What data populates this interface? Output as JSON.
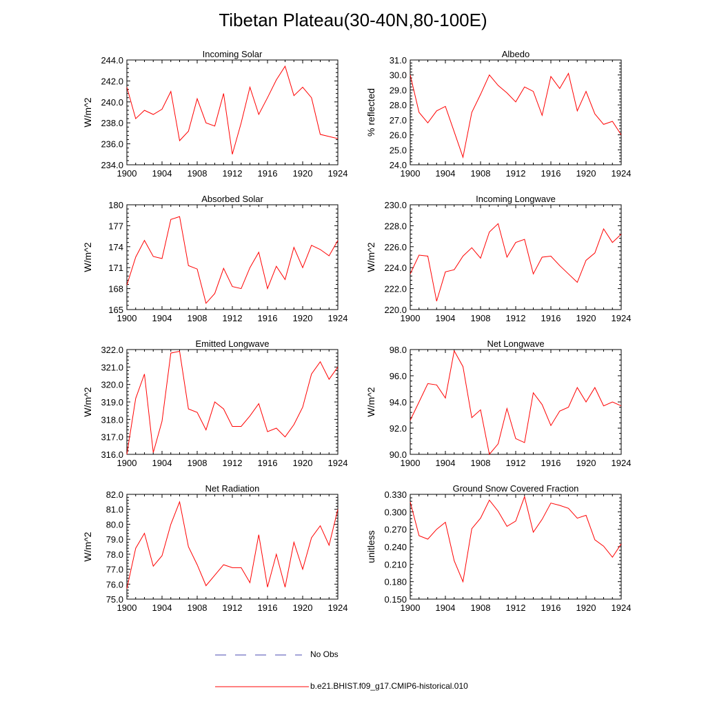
{
  "title": "Tibetan Plateau(30-40N,80-100E)",
  "colors": {
    "series": "#ff0000",
    "obs": "#4a4ab0",
    "axis": "#000000"
  },
  "legend": [
    {
      "label": "No Obs",
      "style": "dashed",
      "color": "#4a4ab0"
    },
    {
      "label": "b.e21.BHIST.f09_g17.CMIP6-historical.010",
      "style": "solid",
      "color": "#ff0000"
    }
  ],
  "chart_data": [
    {
      "type": "line",
      "title": "Incoming Solar",
      "ylabel": "W/m^2",
      "xlim": [
        1900,
        1924
      ],
      "xticks": [
        "1900",
        "1904",
        "1908",
        "1912",
        "1916",
        "1920",
        "1924"
      ],
      "ylim": [
        234.0,
        244.0
      ],
      "yticks": [
        "234.0",
        "236.0",
        "238.0",
        "240.0",
        "242.0",
        "244.0"
      ],
      "x": [
        1900,
        1901,
        1902,
        1903,
        1904,
        1905,
        1906,
        1907,
        1908,
        1909,
        1910,
        1911,
        1912,
        1913,
        1914,
        1915,
        1916,
        1917,
        1918,
        1919,
        1920,
        1921,
        1922,
        1923,
        1924
      ],
      "series": [
        {
          "values": [
            241.4,
            238.4,
            239.2,
            238.8,
            239.3,
            241.0,
            236.3,
            237.2,
            240.3,
            238.0,
            237.7,
            240.8,
            235.0,
            238.0,
            241.4,
            238.8,
            240.4,
            242.1,
            243.4,
            240.6,
            241.4,
            240.4,
            236.9,
            236.7,
            236.5
          ]
        }
      ]
    },
    {
      "type": "line",
      "title": "Albedo",
      "ylabel": "% reflected",
      "xlim": [
        1900,
        1924
      ],
      "xticks": [
        "1900",
        "1904",
        "1908",
        "1912",
        "1916",
        "1920",
        "1924"
      ],
      "ylim": [
        24.0,
        31.0
      ],
      "yticks": [
        "24.0",
        "25.0",
        "26.0",
        "27.0",
        "28.0",
        "29.0",
        "30.0",
        "31.0"
      ],
      "x": [
        1900,
        1901,
        1902,
        1903,
        1904,
        1905,
        1906,
        1907,
        1908,
        1909,
        1910,
        1911,
        1912,
        1913,
        1914,
        1915,
        1916,
        1917,
        1918,
        1919,
        1920,
        1921,
        1922,
        1923,
        1924
      ],
      "series": [
        {
          "values": [
            30.0,
            27.5,
            26.8,
            27.6,
            27.9,
            26.2,
            24.5,
            27.5,
            28.7,
            30.0,
            29.3,
            28.8,
            28.2,
            29.2,
            28.9,
            27.3,
            29.9,
            29.1,
            30.1,
            27.6,
            28.9,
            27.4,
            26.7,
            26.9,
            26.0
          ]
        }
      ]
    },
    {
      "type": "line",
      "title": "Absorbed Solar",
      "ylabel": "W/m^2",
      "xlim": [
        1900,
        1924
      ],
      "xticks": [
        "1900",
        "1904",
        "1908",
        "1912",
        "1916",
        "1920",
        "1924"
      ],
      "ylim": [
        165,
        180
      ],
      "yticks": [
        "165",
        "168",
        "171",
        "174",
        "177",
        "180"
      ],
      "x": [
        1900,
        1901,
        1902,
        1903,
        1904,
        1905,
        1906,
        1907,
        1908,
        1909,
        1910,
        1911,
        1912,
        1913,
        1914,
        1915,
        1916,
        1917,
        1918,
        1919,
        1920,
        1921,
        1922,
        1923,
        1924
      ],
      "series": [
        {
          "values": [
            168.5,
            172.5,
            174.9,
            172.6,
            172.3,
            177.9,
            178.3,
            171.3,
            170.8,
            165.9,
            167.3,
            170.9,
            168.3,
            168.0,
            171.0,
            173.2,
            168.0,
            171.2,
            169.3,
            173.9,
            171.0,
            174.2,
            173.6,
            172.7,
            174.9
          ]
        }
      ]
    },
    {
      "type": "line",
      "title": "Incoming Longwave",
      "ylabel": "W/m^2",
      "xlim": [
        1900,
        1924
      ],
      "xticks": [
        "1900",
        "1904",
        "1908",
        "1912",
        "1916",
        "1920",
        "1924"
      ],
      "ylim": [
        220.0,
        230.0
      ],
      "yticks": [
        "220.0",
        "222.0",
        "224.0",
        "226.0",
        "228.0",
        "230.0"
      ],
      "x": [
        1900,
        1901,
        1902,
        1903,
        1904,
        1905,
        1906,
        1907,
        1908,
        1909,
        1910,
        1911,
        1912,
        1913,
        1914,
        1915,
        1916,
        1917,
        1918,
        1919,
        1920,
        1921,
        1922,
        1923,
        1924
      ],
      "series": [
        {
          "values": [
            223.4,
            225.2,
            225.1,
            220.8,
            223.6,
            223.8,
            225.1,
            225.9,
            224.9,
            227.4,
            228.2,
            225.0,
            226.4,
            226.7,
            223.4,
            225.0,
            225.1,
            224.2,
            223.4,
            222.6,
            224.7,
            225.4,
            227.7,
            226.4,
            227.2
          ]
        }
      ]
    },
    {
      "type": "line",
      "title": "Emitted Longwave",
      "ylabel": "W/m^2",
      "xlim": [
        1900,
        1924
      ],
      "xticks": [
        "1900",
        "1904",
        "1908",
        "1912",
        "1916",
        "1920",
        "1924"
      ],
      "ylim": [
        316.0,
        322.0
      ],
      "yticks": [
        "316.0",
        "317.0",
        "318.0",
        "319.0",
        "320.0",
        "321.0",
        "322.0"
      ],
      "x": [
        1900,
        1901,
        1902,
        1903,
        1904,
        1905,
        1906,
        1907,
        1908,
        1909,
        1910,
        1911,
        1912,
        1913,
        1914,
        1915,
        1916,
        1917,
        1918,
        1919,
        1920,
        1921,
        1922,
        1923,
        1924
      ],
      "series": [
        {
          "values": [
            316.0,
            319.2,
            320.6,
            316.1,
            317.9,
            321.8,
            321.9,
            318.6,
            318.4,
            317.4,
            319.0,
            318.6,
            317.6,
            317.6,
            318.2,
            318.9,
            317.3,
            317.5,
            317.0,
            317.7,
            318.7,
            320.6,
            321.3,
            320.3,
            321.0
          ]
        }
      ]
    },
    {
      "type": "line",
      "title": "Net Longwave",
      "ylabel": "W/m^2",
      "xlim": [
        1900,
        1924
      ],
      "xticks": [
        "1900",
        "1904",
        "1908",
        "1912",
        "1916",
        "1920",
        "1924"
      ],
      "ylim": [
        90.0,
        98.0
      ],
      "yticks": [
        "90.0",
        "92.0",
        "94.0",
        "96.0",
        "98.0"
      ],
      "x": [
        1900,
        1901,
        1902,
        1903,
        1904,
        1905,
        1906,
        1907,
        1908,
        1909,
        1910,
        1911,
        1912,
        1913,
        1914,
        1915,
        1916,
        1917,
        1918,
        1919,
        1920,
        1921,
        1922,
        1923,
        1924
      ],
      "series": [
        {
          "values": [
            92.6,
            94.0,
            95.4,
            95.3,
            94.3,
            97.9,
            96.7,
            92.8,
            93.4,
            90.0,
            90.8,
            93.5,
            91.2,
            90.9,
            94.7,
            93.8,
            92.2,
            93.3,
            93.6,
            95.1,
            94.0,
            95.1,
            93.7,
            94.0,
            93.7
          ]
        }
      ]
    },
    {
      "type": "line",
      "title": "Net Radiation",
      "ylabel": "W/m^2",
      "xlim": [
        1900,
        1924
      ],
      "xticks": [
        "1900",
        "1904",
        "1908",
        "1912",
        "1916",
        "1920",
        "1924"
      ],
      "ylim": [
        75.0,
        82.0
      ],
      "yticks": [
        "75.0",
        "76.0",
        "77.0",
        "78.0",
        "79.0",
        "80.0",
        "81.0",
        "82.0"
      ],
      "x": [
        1900,
        1901,
        1902,
        1903,
        1904,
        1905,
        1906,
        1907,
        1908,
        1909,
        1910,
        1911,
        1912,
        1913,
        1914,
        1915,
        1916,
        1917,
        1918,
        1919,
        1920,
        1921,
        1922,
        1923,
        1924
      ],
      "series": [
        {
          "values": [
            75.7,
            78.4,
            79.4,
            77.2,
            77.9,
            80.0,
            81.5,
            78.5,
            77.3,
            75.9,
            76.6,
            77.3,
            77.1,
            77.1,
            76.1,
            79.3,
            75.8,
            78.0,
            75.8,
            78.8,
            77.0,
            79.1,
            79.9,
            78.6,
            81.0
          ]
        }
      ]
    },
    {
      "type": "line",
      "title": "Ground Snow Covered Fraction",
      "ylabel": "unitless",
      "xlim": [
        1900,
        1924
      ],
      "xticks": [
        "1900",
        "1904",
        "1908",
        "1912",
        "1916",
        "1920",
        "1924"
      ],
      "ylim": [
        0.15,
        0.33
      ],
      "yticks": [
        "0.150",
        "0.180",
        "0.210",
        "0.240",
        "0.270",
        "0.300",
        "0.330"
      ],
      "x": [
        1900,
        1901,
        1902,
        1903,
        1904,
        1905,
        1906,
        1907,
        1908,
        1909,
        1910,
        1911,
        1912,
        1913,
        1914,
        1915,
        1916,
        1917,
        1918,
        1919,
        1920,
        1921,
        1922,
        1923,
        1924
      ],
      "series": [
        {
          "values": [
            0.317,
            0.259,
            0.253,
            0.27,
            0.282,
            0.216,
            0.18,
            0.271,
            0.289,
            0.32,
            0.301,
            0.275,
            0.284,
            0.326,
            0.265,
            0.287,
            0.315,
            0.311,
            0.306,
            0.289,
            0.294,
            0.252,
            0.241,
            0.222,
            0.245
          ]
        }
      ]
    }
  ]
}
